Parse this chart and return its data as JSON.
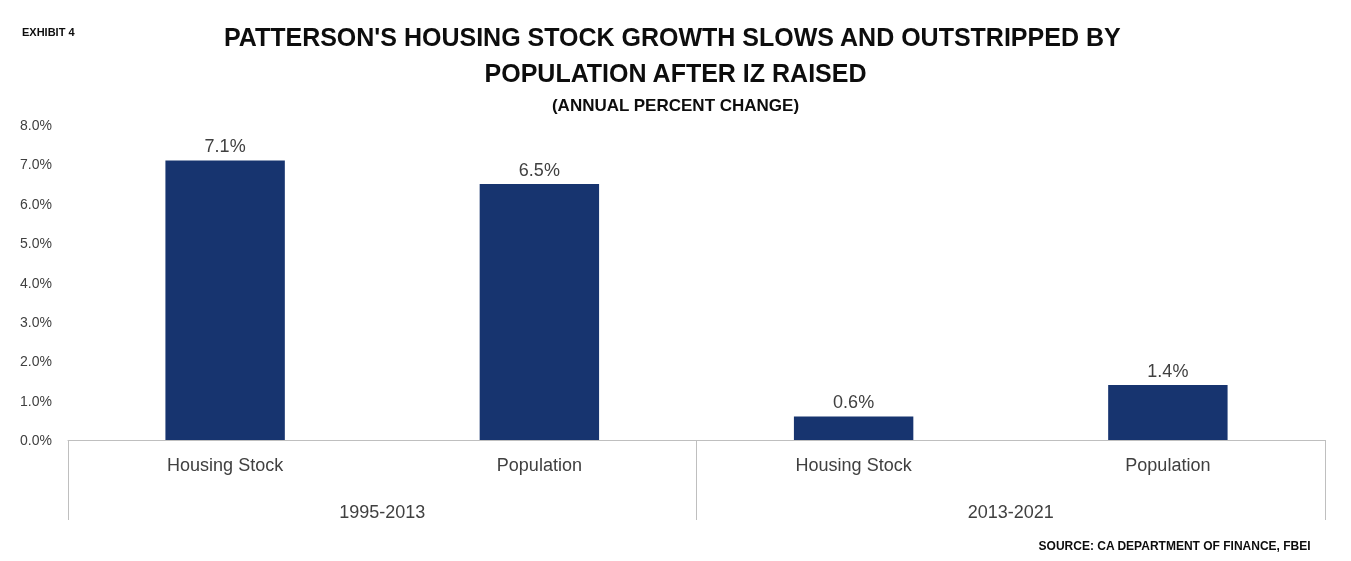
{
  "chart_data": {
    "type": "bar",
    "title": "PATTERSON'S HOUSING STOCK GROWTH SLOWS AND OUTSTRIPPED BY POPULATION AFTER IZ RAISED",
    "subtitle": "(ANNUAL PERCENT CHANGE)",
    "categories": [
      "Housing Stock",
      "Population",
      "Housing Stock",
      "Population"
    ],
    "values": [
      7.1,
      6.5,
      0.6,
      1.4
    ],
    "value_labels": [
      "7.1%",
      "6.5%",
      "0.6%",
      "1.4%"
    ],
    "color": "#17346f",
    "ylim": [
      0,
      8
    ],
    "yticks": [
      {
        "value": 0,
        "label": "0.0%"
      },
      {
        "value": 1,
        "label": "1.0%"
      },
      {
        "value": 2,
        "label": "2.0%"
      },
      {
        "value": 3,
        "label": "3.0%"
      },
      {
        "value": 4,
        "label": "4.0%"
      },
      {
        "value": 5,
        "label": "5.0%"
      },
      {
        "value": 6,
        "label": "6.0%"
      },
      {
        "value": 7,
        "label": "7.0%"
      },
      {
        "value": 8,
        "label": "8.0%"
      }
    ],
    "grid": false,
    "annotations": [
      "1995-2013",
      "2013-2021",
      "EXHIBIT 4",
      "SOURCE: CA DEPARTMENT OF FINANCE, FBEI"
    ]
  }
}
